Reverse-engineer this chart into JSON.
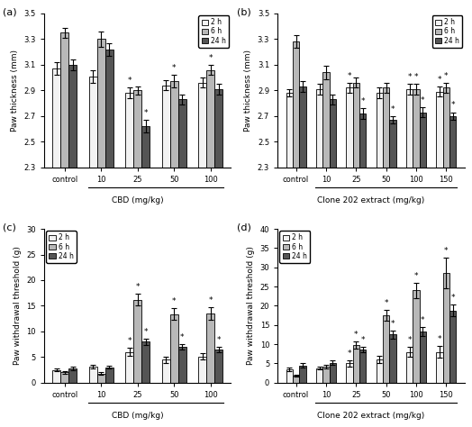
{
  "panel_a": {
    "title": "(a)",
    "xlabel": "CBD (mg/kg)",
    "ylabel": "Paw thickness (mm)",
    "ylim": [
      2.3,
      3.5
    ],
    "yticks": [
      2.3,
      2.5,
      2.7,
      2.9,
      3.1,
      3.3,
      3.5
    ],
    "categories": [
      "control",
      "10",
      "25",
      "50",
      "100"
    ],
    "bar_2h": [
      3.07,
      3.01,
      2.88,
      2.94,
      2.96
    ],
    "bar_6h": [
      3.35,
      3.3,
      2.9,
      2.97,
      3.06
    ],
    "bar_24h": [
      3.1,
      3.22,
      2.62,
      2.83,
      2.91
    ],
    "err_2h": [
      0.05,
      0.05,
      0.04,
      0.04,
      0.04
    ],
    "err_6h": [
      0.04,
      0.06,
      0.03,
      0.05,
      0.04
    ],
    "err_24h": [
      0.04,
      0.05,
      0.05,
      0.04,
      0.04
    ],
    "star_2h": [
      false,
      false,
      true,
      false,
      false
    ],
    "star_6h": [
      false,
      false,
      false,
      true,
      true
    ],
    "star_24h": [
      false,
      false,
      true,
      false,
      false
    ],
    "legend_loc": "upper right"
  },
  "panel_b": {
    "title": "(b)",
    "xlabel": "Clone 202 extract (mg/kg)",
    "ylabel": "Paw thickness (mm)",
    "ylim": [
      2.3,
      3.5
    ],
    "yticks": [
      2.3,
      2.5,
      2.7,
      2.9,
      3.1,
      3.3,
      3.5
    ],
    "categories": [
      "control",
      "10",
      "25",
      "50",
      "100",
      "150"
    ],
    "bar_2h": [
      2.88,
      2.91,
      2.92,
      2.88,
      2.91,
      2.89
    ],
    "bar_6h": [
      3.28,
      3.04,
      2.96,
      2.92,
      2.91,
      2.92
    ],
    "bar_24h": [
      2.93,
      2.83,
      2.72,
      2.67,
      2.73,
      2.7
    ],
    "err_2h": [
      0.03,
      0.04,
      0.04,
      0.04,
      0.04,
      0.04
    ],
    "err_6h": [
      0.05,
      0.05,
      0.04,
      0.04,
      0.04,
      0.04
    ],
    "err_24h": [
      0.04,
      0.04,
      0.04,
      0.03,
      0.04,
      0.03
    ],
    "star_2h": [
      false,
      false,
      true,
      false,
      true,
      true
    ],
    "star_6h": [
      false,
      false,
      false,
      false,
      true,
      true
    ],
    "star_24h": [
      false,
      false,
      true,
      true,
      true,
      true
    ],
    "legend_loc": "upper right"
  },
  "panel_c": {
    "title": "(c)",
    "xlabel": "CBD (mg/kg)",
    "ylabel": "Paw withdrawal threshold (g)",
    "ylim": [
      0,
      30
    ],
    "yticks": [
      0,
      5,
      10,
      15,
      20,
      25,
      30
    ],
    "categories": [
      "control",
      "10",
      "25",
      "50",
      "100"
    ],
    "bar_2h": [
      2.5,
      3.1,
      6.0,
      4.5,
      5.1
    ],
    "bar_6h": [
      2.0,
      1.8,
      16.2,
      13.4,
      13.5
    ],
    "bar_24h": [
      2.8,
      3.0,
      8.0,
      7.0,
      6.5
    ],
    "err_2h": [
      0.3,
      0.3,
      0.8,
      0.6,
      0.6
    ],
    "err_6h": [
      0.2,
      0.2,
      1.2,
      1.2,
      1.2
    ],
    "err_24h": [
      0.3,
      0.3,
      0.6,
      0.5,
      0.5
    ],
    "star_2h": [
      false,
      false,
      true,
      false,
      false
    ],
    "star_6h": [
      false,
      false,
      true,
      true,
      true
    ],
    "star_24h": [
      false,
      false,
      true,
      true,
      true
    ],
    "legend_loc": "upper left"
  },
  "panel_d": {
    "title": "(d)",
    "xlabel": "Clone 202 extract (mg/kg)",
    "ylabel": "Paw withdrawal threshold (g)",
    "ylim": [
      0,
      40
    ],
    "yticks": [
      0,
      5,
      10,
      15,
      20,
      25,
      30,
      35,
      40
    ],
    "categories": [
      "control",
      "10",
      "25",
      "50",
      "100",
      "150"
    ],
    "bar_2h": [
      3.5,
      3.8,
      5.0,
      6.0,
      8.0,
      8.0
    ],
    "bar_6h": [
      1.8,
      4.2,
      9.8,
      17.5,
      24.0,
      28.5
    ],
    "bar_24h": [
      4.5,
      5.2,
      8.6,
      12.5,
      13.3,
      18.8
    ],
    "err_2h": [
      0.4,
      0.4,
      0.8,
      1.0,
      1.2,
      1.5
    ],
    "err_6h": [
      0.3,
      0.5,
      1.0,
      1.5,
      2.0,
      4.0
    ],
    "err_24h": [
      0.5,
      0.5,
      0.8,
      1.0,
      1.2,
      1.5
    ],
    "star_2h": [
      false,
      false,
      true,
      false,
      true,
      true
    ],
    "star_6h": [
      false,
      false,
      true,
      true,
      true,
      true
    ],
    "star_24h": [
      false,
      false,
      true,
      true,
      true,
      true
    ],
    "legend_loc": "upper left"
  },
  "colors": {
    "2h": "#f2f2f2",
    "6h": "#b8b8b8",
    "24h": "#555555"
  },
  "edgecolor": "#000000",
  "bar_width": 0.22
}
